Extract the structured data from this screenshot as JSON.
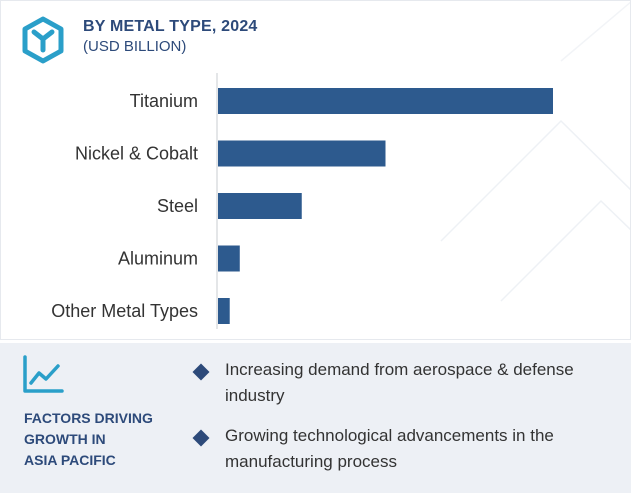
{
  "header": {
    "title": "BY METAL TYPE, 2024",
    "subtitle": "(USD BILLION)"
  },
  "chart_data": {
    "type": "bar",
    "orientation": "horizontal",
    "title": "BY METAL TYPE, 2024",
    "subtitle": "(USD BILLION)",
    "categories": [
      "Titanium",
      "Nickel & Cobalt",
      "Steel",
      "Aluminum",
      "Other Metal Types"
    ],
    "values": [
      100,
      50,
      25,
      6.5,
      3.5
    ],
    "xlim": [
      0,
      100
    ],
    "grid": false,
    "legend": "none",
    "bar_color": "#2d5a8e"
  },
  "factors": {
    "title": "FACTORS DRIVING\nGROWTH IN\nASIA PACIFIC",
    "bullets": [
      "Increasing demand from aerospace & defense industry",
      "Growing technological advancements in the manufacturing process"
    ]
  },
  "icons": {
    "logo": "hexagon-y-logo-icon",
    "factors": "trend-line-icon",
    "bullet": "diamond-bullet-icon"
  },
  "colors": {
    "accent": "#2d4a7a",
    "bar": "#2d5a8e",
    "icon": "#2a9fc9",
    "panel_bg": "#edf0f5"
  }
}
